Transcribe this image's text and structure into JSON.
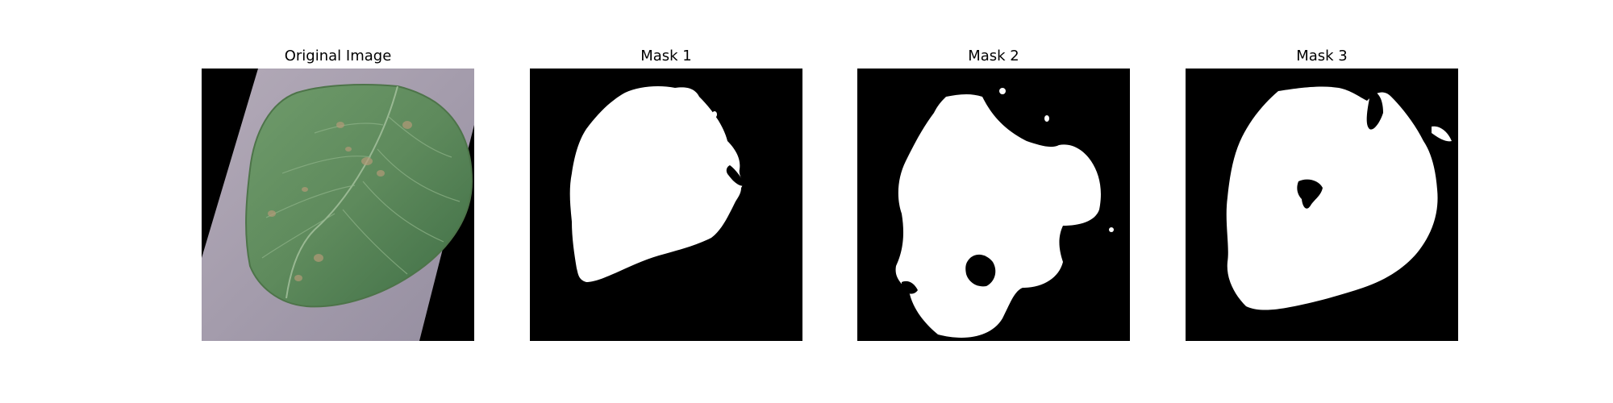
{
  "figure": {
    "panels": [
      {
        "title": "Original Image",
        "content": "leaf-photo"
      },
      {
        "title": "Mask 1",
        "content": "binary-mask"
      },
      {
        "title": "Mask 2",
        "content": "binary-mask"
      },
      {
        "title": "Mask 3",
        "content": "binary-mask"
      }
    ]
  },
  "colors": {
    "background": "#ffffff",
    "mask_background": "#000000",
    "mask_foreground": "#ffffff",
    "leaf_green": "#5e8a5c",
    "photo_background": "#a79fae"
  }
}
